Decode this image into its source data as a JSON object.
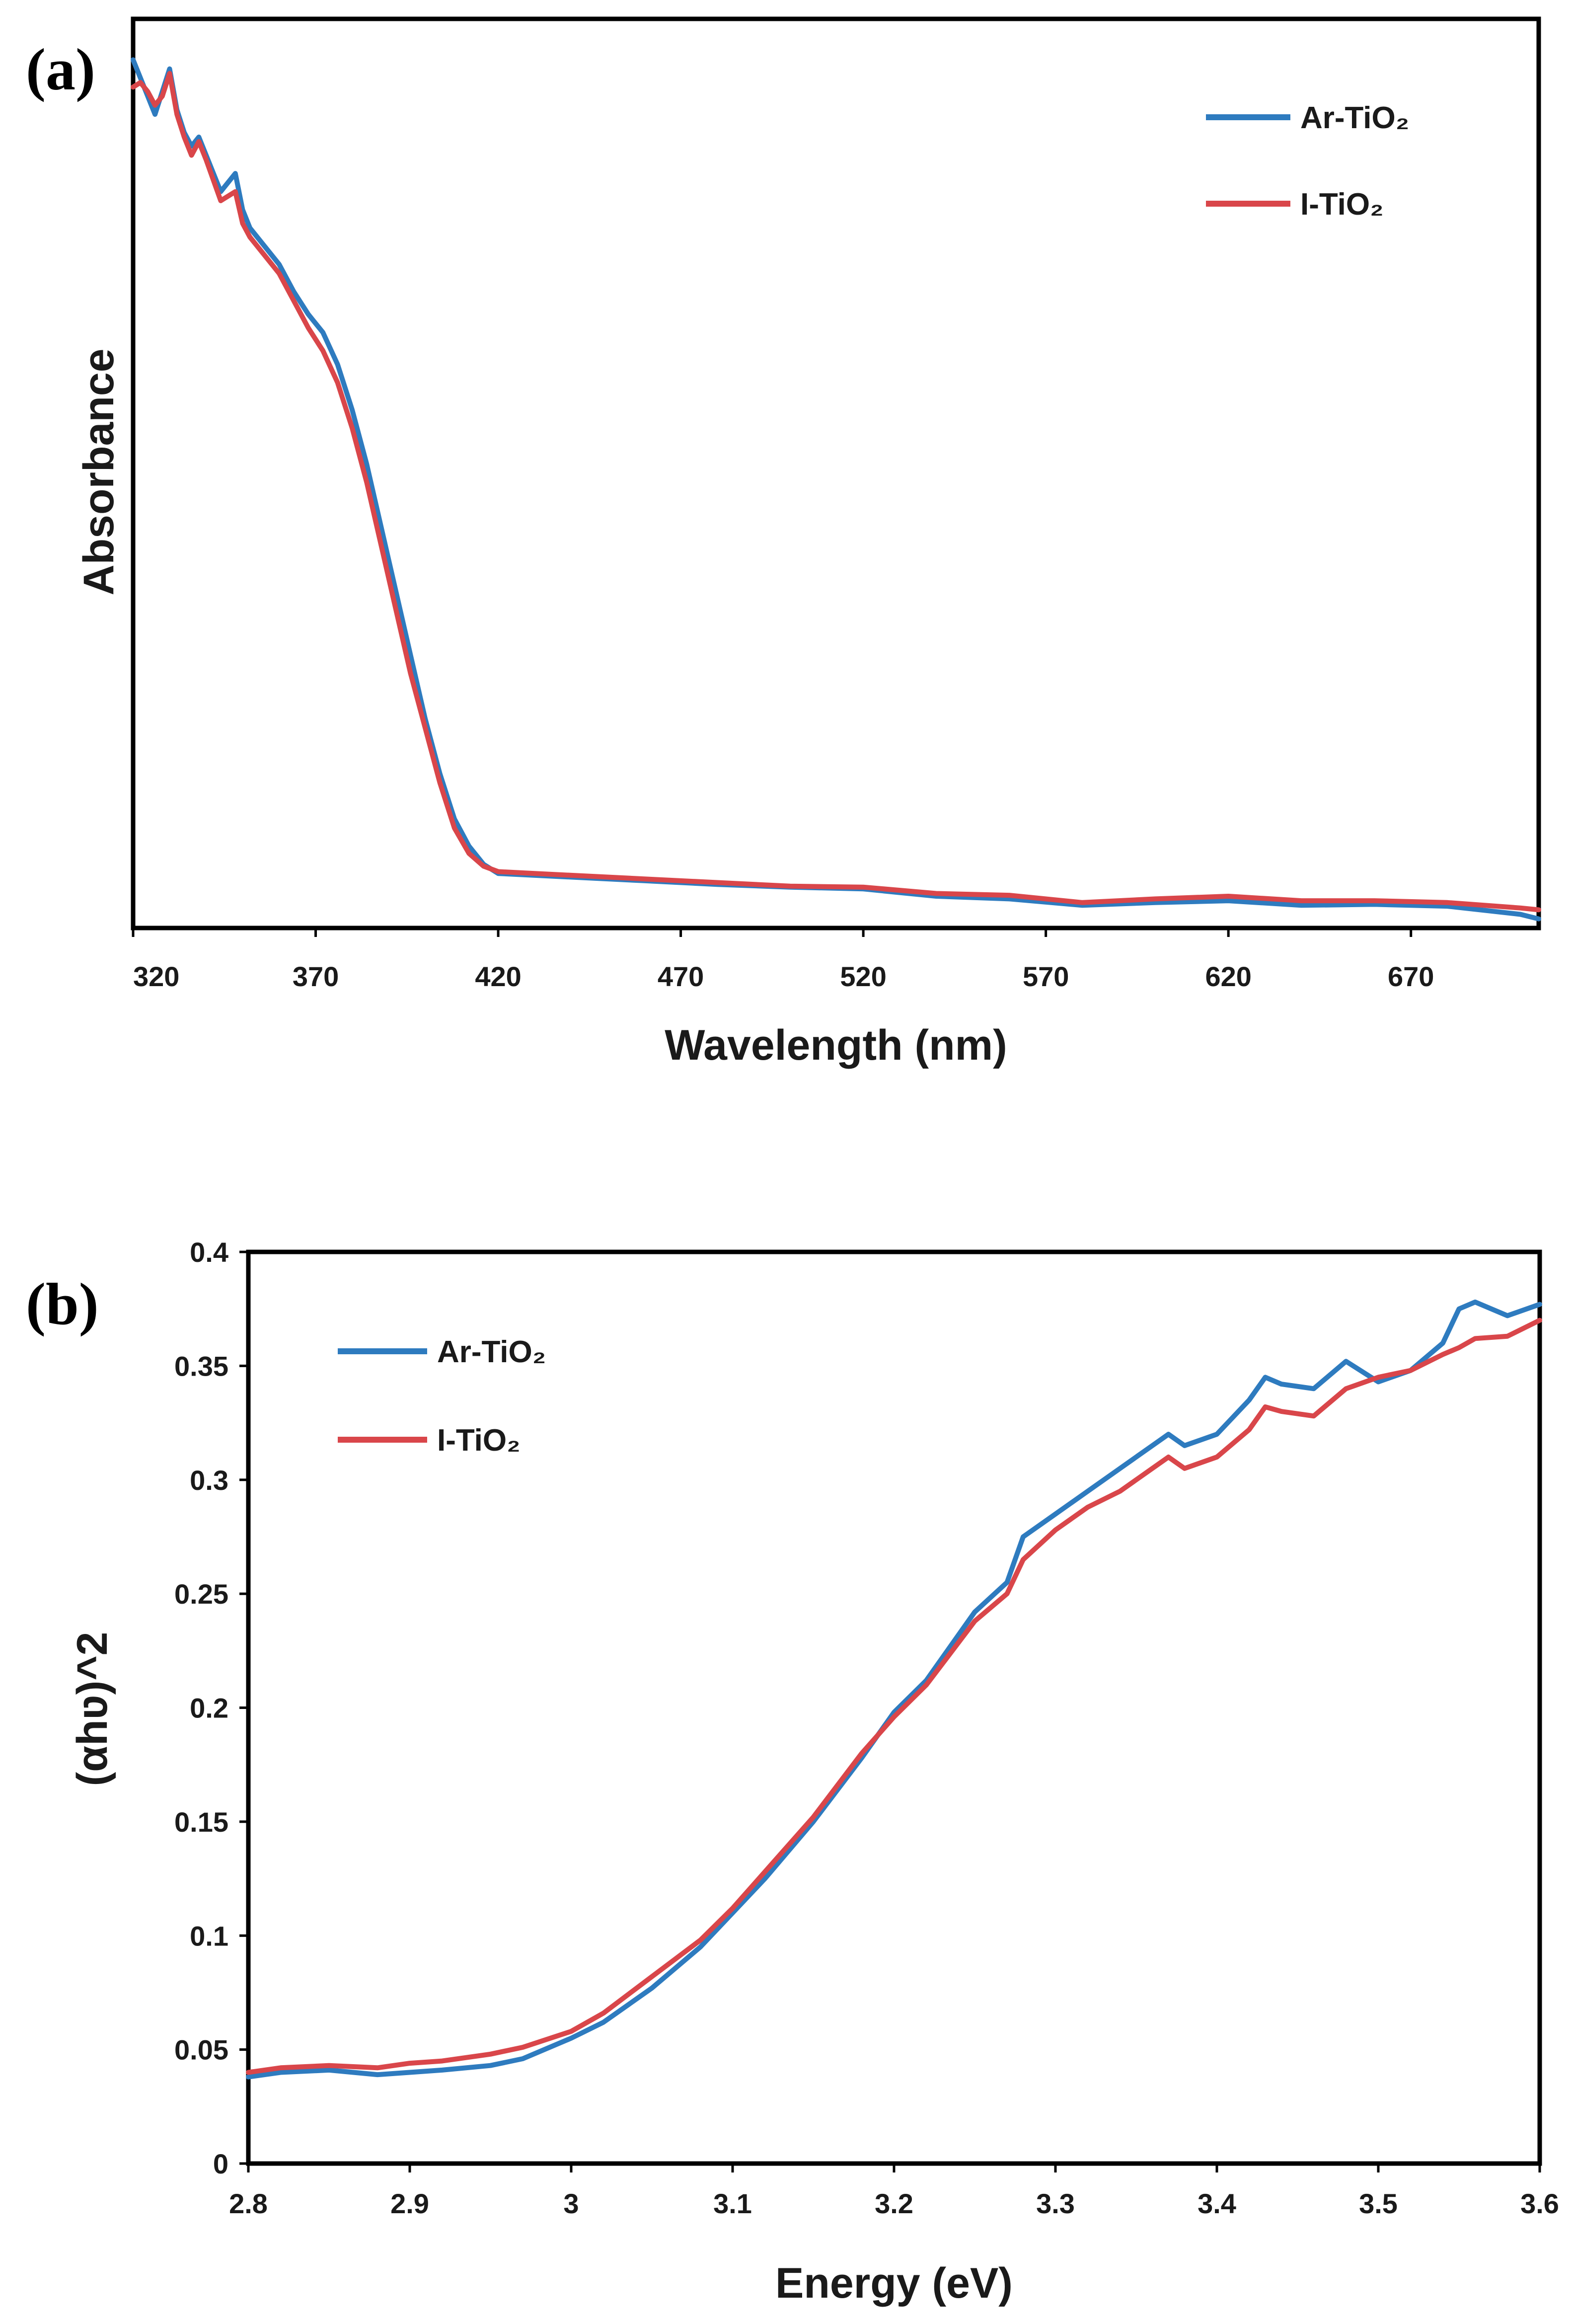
{
  "colors": {
    "ar": "#2E7BBF",
    "i": "#D9464A",
    "frame": "#000000"
  },
  "chart_data": [
    {
      "panel_label": "(a)",
      "type": "line",
      "xlabel": "Wavelength (nm)",
      "ylabel": "Absorbance",
      "xlim": [
        320,
        705
      ],
      "ylim": [
        0,
        1
      ],
      "xticks": [
        "320",
        "370",
        "420",
        "470",
        "520",
        "570",
        "620",
        "670"
      ],
      "yticks": [],
      "legend_position": "top-right",
      "series": [
        {
          "name": "Ar-TiO₂",
          "color_key": "ar",
          "x": [
            320,
            322,
            324,
            326,
            328,
            330,
            332,
            334,
            336,
            338,
            340,
            344,
            348,
            350,
            352,
            356,
            360,
            364,
            368,
            372,
            376,
            380,
            384,
            388,
            392,
            396,
            400,
            404,
            408,
            412,
            416,
            420,
            430,
            440,
            460,
            480,
            500,
            520,
            540,
            560,
            580,
            600,
            620,
            640,
            660,
            680,
            700,
            705
          ],
          "y": [
            0.955,
            0.935,
            0.915,
            0.895,
            0.92,
            0.945,
            0.9,
            0.875,
            0.86,
            0.87,
            0.85,
            0.81,
            0.83,
            0.79,
            0.77,
            0.75,
            0.73,
            0.7,
            0.675,
            0.655,
            0.62,
            0.57,
            0.51,
            0.44,
            0.37,
            0.3,
            0.23,
            0.17,
            0.12,
            0.09,
            0.07,
            0.06,
            0.058,
            0.056,
            0.052,
            0.048,
            0.045,
            0.043,
            0.035,
            0.032,
            0.025,
            0.028,
            0.03,
            0.025,
            0.026,
            0.024,
            0.015,
            0.01
          ]
        },
        {
          "name": "I-TiO₂",
          "color_key": "i",
          "x": [
            320,
            322,
            324,
            326,
            328,
            330,
            332,
            334,
            336,
            338,
            340,
            344,
            348,
            350,
            352,
            356,
            360,
            364,
            368,
            372,
            376,
            380,
            384,
            388,
            392,
            396,
            400,
            404,
            408,
            412,
            416,
            420,
            430,
            440,
            460,
            480,
            500,
            520,
            540,
            560,
            580,
            600,
            620,
            640,
            660,
            680,
            700,
            705
          ],
          "y": [
            0.925,
            0.93,
            0.92,
            0.905,
            0.915,
            0.94,
            0.895,
            0.87,
            0.85,
            0.865,
            0.845,
            0.8,
            0.81,
            0.775,
            0.76,
            0.74,
            0.72,
            0.69,
            0.66,
            0.635,
            0.6,
            0.55,
            0.49,
            0.42,
            0.35,
            0.28,
            0.22,
            0.16,
            0.11,
            0.082,
            0.068,
            0.062,
            0.06,
            0.058,
            0.054,
            0.05,
            0.046,
            0.045,
            0.038,
            0.036,
            0.028,
            0.032,
            0.035,
            0.03,
            0.03,
            0.028,
            0.022,
            0.02
          ]
        }
      ]
    },
    {
      "panel_label": "(b)",
      "type": "line",
      "xlabel": "Energy (eV)",
      "ylabel": "(αhʋ)^2",
      "xlim": [
        2.8,
        3.6
      ],
      "ylim": [
        0,
        0.4
      ],
      "xticks": [
        "2.8",
        "2.9",
        "3",
        "3.1",
        "3.2",
        "3.3",
        "3.4",
        "3.5",
        "3.6"
      ],
      "yticks": [
        "0",
        "0.05",
        "0.1",
        "0.15",
        "0.2",
        "0.25",
        "0.3",
        "0.35",
        "0.4"
      ],
      "legend_position": "top-left",
      "series": [
        {
          "name": "Ar-TiO₂",
          "color_key": "ar",
          "x": [
            2.8,
            2.82,
            2.85,
            2.88,
            2.9,
            2.92,
            2.95,
            2.97,
            3.0,
            3.02,
            3.05,
            3.08,
            3.1,
            3.12,
            3.15,
            3.18,
            3.2,
            3.22,
            3.25,
            3.27,
            3.28,
            3.3,
            3.32,
            3.34,
            3.36,
            3.37,
            3.38,
            3.4,
            3.42,
            3.43,
            3.44,
            3.46,
            3.48,
            3.5,
            3.52,
            3.54,
            3.55,
            3.56,
            3.58,
            3.6
          ],
          "y": [
            0.038,
            0.04,
            0.041,
            0.039,
            0.04,
            0.041,
            0.043,
            0.046,
            0.055,
            0.062,
            0.077,
            0.095,
            0.11,
            0.125,
            0.15,
            0.178,
            0.198,
            0.212,
            0.242,
            0.255,
            0.275,
            0.285,
            0.295,
            0.305,
            0.315,
            0.32,
            0.315,
            0.32,
            0.335,
            0.345,
            0.342,
            0.34,
            0.352,
            0.343,
            0.348,
            0.36,
            0.375,
            0.378,
            0.372,
            0.377
          ]
        },
        {
          "name": "I-TiO₂",
          "color_key": "i",
          "x": [
            2.8,
            2.82,
            2.85,
            2.88,
            2.9,
            2.92,
            2.95,
            2.97,
            3.0,
            3.02,
            3.05,
            3.08,
            3.1,
            3.12,
            3.15,
            3.18,
            3.2,
            3.22,
            3.25,
            3.27,
            3.28,
            3.3,
            3.32,
            3.34,
            3.36,
            3.37,
            3.38,
            3.4,
            3.42,
            3.43,
            3.44,
            3.46,
            3.48,
            3.5,
            3.52,
            3.54,
            3.55,
            3.56,
            3.58,
            3.6
          ],
          "y": [
            0.04,
            0.042,
            0.043,
            0.042,
            0.044,
            0.045,
            0.048,
            0.051,
            0.058,
            0.066,
            0.082,
            0.098,
            0.112,
            0.128,
            0.152,
            0.18,
            0.196,
            0.21,
            0.238,
            0.25,
            0.265,
            0.278,
            0.288,
            0.295,
            0.305,
            0.31,
            0.305,
            0.31,
            0.322,
            0.332,
            0.33,
            0.328,
            0.34,
            0.345,
            0.348,
            0.355,
            0.358,
            0.362,
            0.363,
            0.37
          ]
        }
      ]
    }
  ]
}
